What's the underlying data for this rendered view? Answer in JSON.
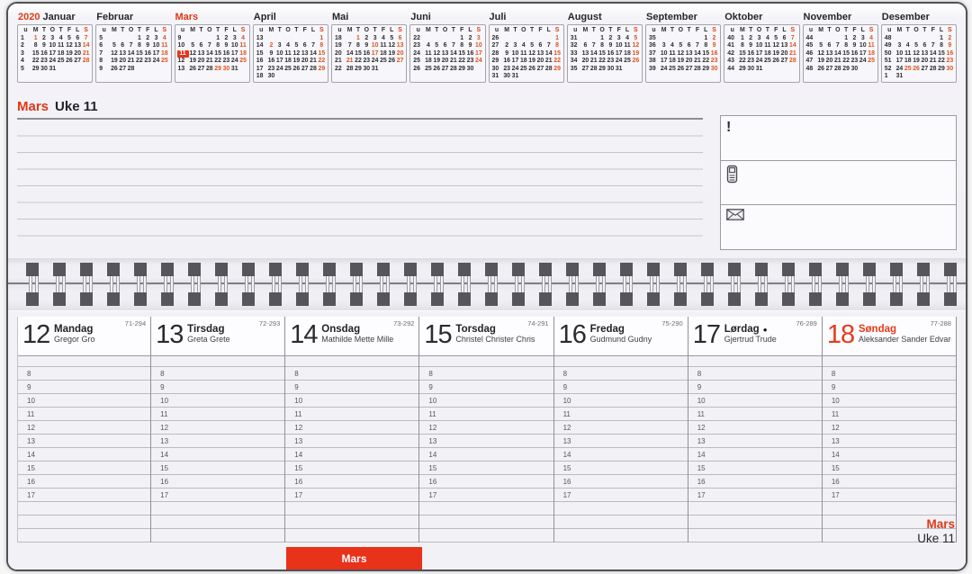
{
  "calendar": {
    "year": "2020",
    "day_letters": [
      "u",
      "M",
      "T",
      "O",
      "T",
      "F",
      "L",
      "S"
    ],
    "months": [
      {
        "name": "Januar",
        "prefix": "2020",
        "accent": false,
        "red_days": [
          "1",
          "7",
          "14",
          "21",
          "28"
        ],
        "weeks": [
          {
            "w": "1",
            "d": [
              "1",
              "2",
              "3",
              "4",
              "5",
              "6",
              "7"
            ]
          },
          {
            "w": "2",
            "d": [
              "8",
              "9",
              "10",
              "11",
              "12",
              "13",
              "14"
            ]
          },
          {
            "w": "3",
            "d": [
              "15",
              "16",
              "17",
              "18",
              "19",
              "20",
              "21"
            ]
          },
          {
            "w": "4",
            "d": [
              "22",
              "23",
              "24",
              "25",
              "26",
              "27",
              "28"
            ]
          },
          {
            "w": "5",
            "d": [
              "29",
              "30",
              "31",
              "",
              "",
              "",
              ""
            ]
          }
        ]
      },
      {
        "name": "Februar",
        "accent": false,
        "red_days": [
          "4",
          "11",
          "18",
          "25"
        ],
        "weeks": [
          {
            "w": "5",
            "d": [
              "",
              "",
              "",
              "1",
              "2",
              "3",
              "4"
            ]
          },
          {
            "w": "6",
            "d": [
              "5",
              "6",
              "7",
              "8",
              "9",
              "10",
              "11"
            ]
          },
          {
            "w": "7",
            "d": [
              "12",
              "13",
              "14",
              "15",
              "16",
              "17",
              "18"
            ]
          },
          {
            "w": "8",
            "d": [
              "19",
              "20",
              "21",
              "22",
              "23",
              "24",
              "25"
            ]
          },
          {
            "w": "9",
            "d": [
              "26",
              "27",
              "28",
              "",
              "",
              "",
              ""
            ]
          }
        ]
      },
      {
        "name": "Mars",
        "accent": true,
        "highlight_week": "11",
        "red_days": [
          "4",
          "11",
          "18",
          "25",
          "29",
          "30"
        ],
        "weeks": [
          {
            "w": "9",
            "d": [
              "",
              "",
              "",
              "1",
              "2",
              "3",
              "4"
            ]
          },
          {
            "w": "10",
            "d": [
              "5",
              "6",
              "7",
              "8",
              "9",
              "10",
              "11"
            ]
          },
          {
            "w": "11",
            "d": [
              "12",
              "13",
              "14",
              "15",
              "16",
              "17",
              "18"
            ]
          },
          {
            "w": "12",
            "d": [
              "19",
              "20",
              "21",
              "22",
              "23",
              "24",
              "25"
            ]
          },
          {
            "w": "13",
            "d": [
              "26",
              "27",
              "28",
              "29",
              "30",
              "31",
              ""
            ]
          }
        ]
      },
      {
        "name": "April",
        "accent": false,
        "red_days": [
          "1",
          "2",
          "8",
          "15",
          "22",
          "29"
        ],
        "weeks": [
          {
            "w": "13",
            "d": [
              "",
              "",
              "",
              "",
              "",
              "",
              "1"
            ]
          },
          {
            "w": "14",
            "d": [
              "2",
              "3",
              "4",
              "5",
              "6",
              "7",
              "8"
            ]
          },
          {
            "w": "15",
            "d": [
              "9",
              "10",
              "11",
              "12",
              "13",
              "14",
              "15"
            ]
          },
          {
            "w": "16",
            "d": [
              "16",
              "17",
              "18",
              "19",
              "20",
              "21",
              "22"
            ]
          },
          {
            "w": "17",
            "d": [
              "23",
              "24",
              "25",
              "26",
              "27",
              "28",
              "29"
            ]
          },
          {
            "w": "18",
            "d": [
              "30",
              "",
              "",
              "",
              "",
              "",
              ""
            ]
          }
        ]
      },
      {
        "name": "Mai",
        "accent": false,
        "red_days": [
          "1",
          "6",
          "10",
          "13",
          "17",
          "20",
          "21",
          "27"
        ],
        "weeks": [
          {
            "w": "18",
            "d": [
              "",
              "1",
              "2",
              "3",
              "4",
              "5",
              "6"
            ]
          },
          {
            "w": "19",
            "d": [
              "7",
              "8",
              "9",
              "10",
              "11",
              "12",
              "13"
            ]
          },
          {
            "w": "20",
            "d": [
              "14",
              "15",
              "16",
              "17",
              "18",
              "19",
              "20"
            ]
          },
          {
            "w": "21",
            "d": [
              "21",
              "22",
              "23",
              "24",
              "25",
              "26",
              "27"
            ]
          },
          {
            "w": "22",
            "d": [
              "28",
              "29",
              "30",
              "31",
              "",
              "",
              ""
            ]
          }
        ]
      },
      {
        "name": "Juni",
        "accent": false,
        "red_days": [
          "3",
          "10",
          "17",
          "24"
        ],
        "weeks": [
          {
            "w": "22",
            "d": [
              "",
              "",
              "",
              "",
              "1",
              "2",
              "3"
            ]
          },
          {
            "w": "23",
            "d": [
              "4",
              "5",
              "6",
              "7",
              "8",
              "9",
              "10"
            ]
          },
          {
            "w": "24",
            "d": [
              "11",
              "12",
              "13",
              "14",
              "15",
              "16",
              "17"
            ]
          },
          {
            "w": "25",
            "d": [
              "18",
              "19",
              "20",
              "21",
              "22",
              "23",
              "24"
            ]
          },
          {
            "w": "26",
            "d": [
              "25",
              "26",
              "27",
              "28",
              "29",
              "30",
              ""
            ]
          }
        ]
      },
      {
        "name": "Juli",
        "accent": false,
        "red_days": [
          "1",
          "8",
          "15",
          "22",
          "29"
        ],
        "weeks": [
          {
            "w": "26",
            "d": [
              "",
              "",
              "",
              "",
              "",
              "",
              "1"
            ]
          },
          {
            "w": "27",
            "d": [
              "2",
              "3",
              "4",
              "5",
              "6",
              "7",
              "8"
            ]
          },
          {
            "w": "28",
            "d": [
              "9",
              "10",
              "11",
              "12",
              "13",
              "14",
              "15"
            ]
          },
          {
            "w": "29",
            "d": [
              "16",
              "17",
              "18",
              "19",
              "20",
              "21",
              "22"
            ]
          },
          {
            "w": "30",
            "d": [
              "23",
              "24",
              "25",
              "26",
              "27",
              "28",
              "29"
            ]
          },
          {
            "w": "31",
            "d": [
              "30",
              "31",
              "",
              "",
              "",
              "",
              ""
            ]
          }
        ]
      },
      {
        "name": "August",
        "accent": false,
        "red_days": [
          "5",
          "12",
          "19",
          "26"
        ],
        "weeks": [
          {
            "w": "31",
            "d": [
              "",
              "",
              "1",
              "2",
              "3",
              "4",
              "5"
            ]
          },
          {
            "w": "32",
            "d": [
              "6",
              "7",
              "8",
              "9",
              "10",
              "11",
              "12"
            ]
          },
          {
            "w": "33",
            "d": [
              "13",
              "14",
              "15",
              "16",
              "17",
              "18",
              "19"
            ]
          },
          {
            "w": "34",
            "d": [
              "20",
              "21",
              "22",
              "23",
              "24",
              "25",
              "26"
            ]
          },
          {
            "w": "35",
            "d": [
              "27",
              "28",
              "29",
              "30",
              "31",
              "",
              ""
            ]
          }
        ]
      },
      {
        "name": "September",
        "accent": false,
        "red_days": [
          "2",
          "9",
          "16",
          "23",
          "30"
        ],
        "weeks": [
          {
            "w": "35",
            "d": [
              "",
              "",
              "",
              "",
              "",
              "1",
              "2"
            ]
          },
          {
            "w": "36",
            "d": [
              "3",
              "4",
              "5",
              "6",
              "7",
              "8",
              "9"
            ]
          },
          {
            "w": "37",
            "d": [
              "10",
              "11",
              "12",
              "13",
              "14",
              "15",
              "16"
            ]
          },
          {
            "w": "38",
            "d": [
              "17",
              "18",
              "19",
              "20",
              "21",
              "22",
              "23"
            ]
          },
          {
            "w": "39",
            "d": [
              "24",
              "25",
              "26",
              "27",
              "28",
              "29",
              "30"
            ]
          }
        ]
      },
      {
        "name": "Oktober",
        "accent": false,
        "red_days": [
          "7",
          "14",
          "21",
          "28"
        ],
        "weeks": [
          {
            "w": "40",
            "d": [
              "1",
              "2",
              "3",
              "4",
              "5",
              "6",
              "7"
            ]
          },
          {
            "w": "41",
            "d": [
              "8",
              "9",
              "10",
              "11",
              "12",
              "13",
              "14"
            ]
          },
          {
            "w": "42",
            "d": [
              "15",
              "16",
              "17",
              "18",
              "19",
              "20",
              "21"
            ]
          },
          {
            "w": "43",
            "d": [
              "22",
              "23",
              "24",
              "25",
              "26",
              "27",
              "28"
            ]
          },
          {
            "w": "44",
            "d": [
              "29",
              "30",
              "31",
              "",
              "",
              "",
              ""
            ]
          }
        ]
      },
      {
        "name": "November",
        "accent": false,
        "red_days": [
          "4",
          "11",
          "18",
          "25"
        ],
        "weeks": [
          {
            "w": "44",
            "d": [
              "",
              "",
              "",
              "1",
              "2",
              "3",
              "4"
            ]
          },
          {
            "w": "45",
            "d": [
              "5",
              "6",
              "7",
              "8",
              "9",
              "10",
              "11"
            ]
          },
          {
            "w": "46",
            "d": [
              "12",
              "13",
              "14",
              "15",
              "16",
              "17",
              "18"
            ]
          },
          {
            "w": "47",
            "d": [
              "19",
              "20",
              "21",
              "22",
              "23",
              "24",
              "25"
            ]
          },
          {
            "w": "48",
            "d": [
              "26",
              "27",
              "28",
              "29",
              "30",
              "",
              ""
            ]
          }
        ]
      },
      {
        "name": "Desember",
        "accent": false,
        "red_days": [
          "2",
          "9",
          "16",
          "23",
          "25",
          "26",
          "30"
        ],
        "weeks": [
          {
            "w": "48",
            "d": [
              "",
              "",
              "",
              "",
              "",
              "1",
              "2"
            ]
          },
          {
            "w": "49",
            "d": [
              "3",
              "4",
              "5",
              "6",
              "7",
              "8",
              "9"
            ]
          },
          {
            "w": "50",
            "d": [
              "10",
              "11",
              "12",
              "13",
              "14",
              "15",
              "16"
            ]
          },
          {
            "w": "51",
            "d": [
              "17",
              "18",
              "19",
              "20",
              "21",
              "22",
              "23"
            ]
          },
          {
            "w": "52",
            "d": [
              "24",
              "25",
              "26",
              "27",
              "28",
              "29",
              "30"
            ]
          },
          {
            "w": "1",
            "d": [
              "31",
              "",
              "",
              "",
              "",
              "",
              ""
            ]
          }
        ]
      }
    ]
  },
  "notes": {
    "month": "Mars",
    "week": "Uke 11"
  },
  "side_panel": {
    "alert_symbol": "!"
  },
  "week_strip": {
    "hours": [
      "8",
      "9",
      "10",
      "11",
      "12",
      "13",
      "14",
      "15",
      "16",
      "17"
    ],
    "days": [
      {
        "num": "12",
        "name": "Mandag",
        "persons": "Gregor Gro",
        "page_ref": "71-294",
        "red": false,
        "moon": ""
      },
      {
        "num": "13",
        "name": "Tirsdag",
        "persons": "Greta Grete",
        "page_ref": "72-293",
        "red": false,
        "moon": ""
      },
      {
        "num": "14",
        "name": "Onsdag",
        "persons": "Mathilde Mette Mille",
        "page_ref": "73-292",
        "red": false,
        "moon": ""
      },
      {
        "num": "15",
        "name": "Torsdag",
        "persons": "Christel Christer Chris",
        "page_ref": "74-291",
        "red": false,
        "moon": ""
      },
      {
        "num": "16",
        "name": "Fredag",
        "persons": "Gudmund Gudny",
        "page_ref": "75-290",
        "red": false,
        "moon": ""
      },
      {
        "num": "17",
        "name": "Lørdag",
        "persons": "Gjertrud Trude",
        "page_ref": "76-289",
        "red": false,
        "moon": "●"
      },
      {
        "num": "18",
        "name": "Søndag",
        "persons": "Aleksander Sander Edvard",
        "page_ref": "77-288",
        "red": true,
        "moon": ""
      }
    ]
  },
  "footer": {
    "tab": "Mars",
    "corner_month": "Mars",
    "corner_week": "Uke 11"
  },
  "colors": {
    "accent": "#e8341b",
    "holiday_red": "#dd5420"
  }
}
